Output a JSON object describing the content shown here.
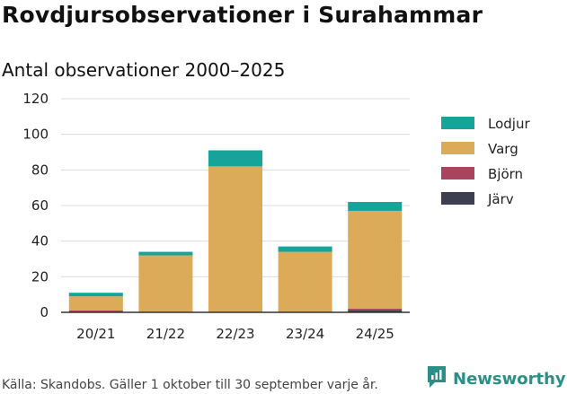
{
  "header": {
    "title": "Rovdjursobservationer i Surahammar",
    "subtitle": "Antal observationer 2000–2025"
  },
  "footer": {
    "source": "Källa: Skandobs. Gäller 1 oktober till 30 september varje år.",
    "brand": "Newsworthy",
    "brand_icon": "newsworthy-logo-icon",
    "brand_color": "#2a8f87"
  },
  "chart_data": {
    "type": "bar",
    "stacked": true,
    "title": "Rovdjursobservationer i Surahammar",
    "subtitle": "Antal observationer 2000–2025",
    "xlabel": "",
    "ylabel": "",
    "categories": [
      "20/21",
      "21/22",
      "22/23",
      "23/24",
      "24/25"
    ],
    "ylim": [
      0,
      120
    ],
    "yticks": [
      0,
      20,
      40,
      60,
      80,
      100,
      120
    ],
    "grid": true,
    "legend_position": "right",
    "series": [
      {
        "name": "Järv",
        "color": "#3b3f4f",
        "values": [
          0,
          0,
          0,
          0,
          1
        ]
      },
      {
        "name": "Björn",
        "color": "#a8445e",
        "values": [
          1,
          0,
          0,
          0,
          1
        ]
      },
      {
        "name": "Varg",
        "color": "#dbab5a",
        "values": [
          8,
          32,
          82,
          34,
          55
        ]
      },
      {
        "name": "Lodjur",
        "color": "#16a39a",
        "values": [
          2,
          2,
          9,
          3,
          5
        ]
      }
    ],
    "legend_order": [
      "Lodjur",
      "Varg",
      "Björn",
      "Järv"
    ]
  }
}
